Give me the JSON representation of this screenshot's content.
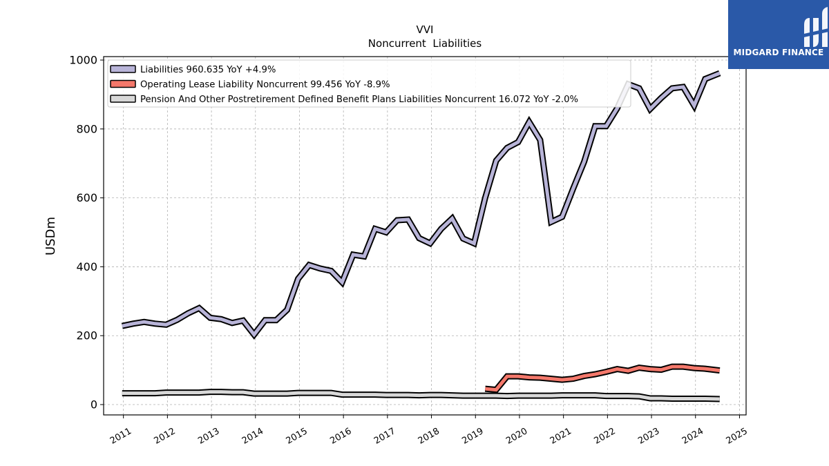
{
  "brand": {
    "name": "MIDGARD FINANCE",
    "color": "#2a59a8"
  },
  "chart_data": {
    "type": "line",
    "title": "VVI",
    "subtitle": "Noncurrent  Liabilities",
    "xlabel": "",
    "ylabel": "USDm",
    "xlim": [
      2010.55,
      2025.15
    ],
    "ylim": [
      -30,
      1010
    ],
    "x_ticks": [
      "2011",
      "2012",
      "2013",
      "2014",
      "2015",
      "2016",
      "2017",
      "2018",
      "2019",
      "2020",
      "2021",
      "2022",
      "2023",
      "2024",
      "2025"
    ],
    "y_ticks": [
      0,
      200,
      400,
      600,
      800,
      1000
    ],
    "grid": true,
    "legend_position": "upper-left",
    "series": [
      {
        "name": "Liabilities",
        "legend": "Liabilities  960.635 YoY +4.9%",
        "color": "#b8b4d8",
        "x": [
          2010.97,
          2011.22,
          2011.47,
          2011.72,
          2011.97,
          2012.22,
          2012.47,
          2012.72,
          2012.97,
          2013.22,
          2013.47,
          2013.72,
          2013.97,
          2014.22,
          2014.47,
          2014.72,
          2014.97,
          2015.22,
          2015.47,
          2015.72,
          2015.97,
          2016.22,
          2016.47,
          2016.72,
          2016.97,
          2017.22,
          2017.47,
          2017.72,
          2017.97,
          2018.22,
          2018.47,
          2018.72,
          2018.97,
          2019.22,
          2019.47,
          2019.72,
          2019.97,
          2020.22,
          2020.47,
          2020.72,
          2020.97,
          2021.22,
          2021.47,
          2021.72,
          2021.97,
          2022.22,
          2022.47,
          2022.72,
          2022.97,
          2023.22,
          2023.47,
          2023.72,
          2023.97,
          2024.22,
          2024.55
        ],
        "y": [
          228,
          235,
          240,
          235,
          232,
          246,
          265,
          280,
          252,
          248,
          237,
          244,
          203,
          245,
          245,
          275,
          365,
          405,
          395,
          388,
          355,
          435,
          430,
          510,
          500,
          535,
          537,
          483,
          468,
          510,
          540,
          482,
          468,
          600,
          708,
          745,
          762,
          820,
          768,
          530,
          545,
          627,
          705,
          808,
          808,
          860,
          930,
          918,
          858,
          890,
          918,
          922,
          868,
          945,
          962
        ]
      },
      {
        "name": "Operating Lease Liability Noncurrent",
        "legend": "Operating Lease Liability Noncurrent  99.456 YoY -8.9%",
        "color": "#f4786b",
        "x": [
          2019.22,
          2019.47,
          2019.72,
          2019.97,
          2020.22,
          2020.47,
          2020.72,
          2020.97,
          2021.22,
          2021.47,
          2021.72,
          2021.97,
          2022.22,
          2022.47,
          2022.72,
          2022.97,
          2023.22,
          2023.47,
          2023.72,
          2023.97,
          2024.22,
          2024.55
        ],
        "y": [
          46,
          43,
          82,
          82,
          79,
          78,
          75,
          72,
          75,
          83,
          88,
          95,
          103,
          98,
          107,
          103,
          101,
          110,
          110,
          106,
          104,
          99
        ]
      },
      {
        "name": "Pension And Other Postretirement Defined Benefit Plans Liabilities Noncurrent",
        "legend": "Pension And Other Postretirement Defined Benefit Plans Liabilities Noncurrent  16.072 YoY -2.0%",
        "color": "#d8d8d8",
        "x": [
          2010.97,
          2011.22,
          2011.47,
          2011.72,
          2011.97,
          2012.22,
          2012.47,
          2012.72,
          2012.97,
          2013.22,
          2013.47,
          2013.72,
          2013.97,
          2014.22,
          2014.47,
          2014.72,
          2014.97,
          2015.22,
          2015.47,
          2015.72,
          2015.97,
          2016.22,
          2016.47,
          2016.72,
          2016.97,
          2017.22,
          2017.47,
          2017.72,
          2017.97,
          2018.22,
          2018.47,
          2018.72,
          2018.97,
          2019.22,
          2019.47,
          2019.72,
          2019.97,
          2020.22,
          2020.47,
          2020.72,
          2020.97,
          2021.22,
          2021.47,
          2021.72,
          2021.97,
          2022.22,
          2022.47,
          2022.72,
          2022.97,
          2023.22,
          2023.47,
          2023.72,
          2023.97,
          2024.22,
          2024.55
        ],
        "y": [
          33,
          33,
          33,
          33,
          35,
          35,
          35,
          35,
          37,
          37,
          36,
          36,
          32,
          32,
          32,
          32,
          34,
          34,
          34,
          34,
          29,
          29,
          29,
          29,
          28,
          28,
          28,
          27,
          28,
          28,
          27,
          26,
          26,
          26,
          26,
          25,
          26,
          26,
          26,
          26,
          27,
          27,
          27,
          27,
          25,
          25,
          25,
          24,
          18,
          18,
          17,
          17,
          17,
          17,
          16
        ]
      }
    ]
  }
}
